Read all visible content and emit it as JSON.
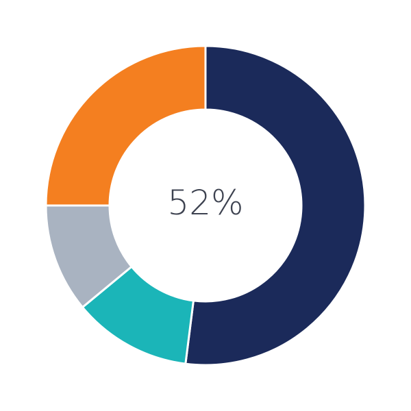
{
  "chart_data": {
    "type": "pie",
    "donut": true,
    "center_label": "52%",
    "values": [
      52,
      12,
      11,
      25
    ],
    "colors": [
      "#1b2a5a",
      "#1bb5b8",
      "#a9b3c1",
      "#f47f20"
    ],
    "start_angle": "top",
    "direction": "clockwise"
  }
}
